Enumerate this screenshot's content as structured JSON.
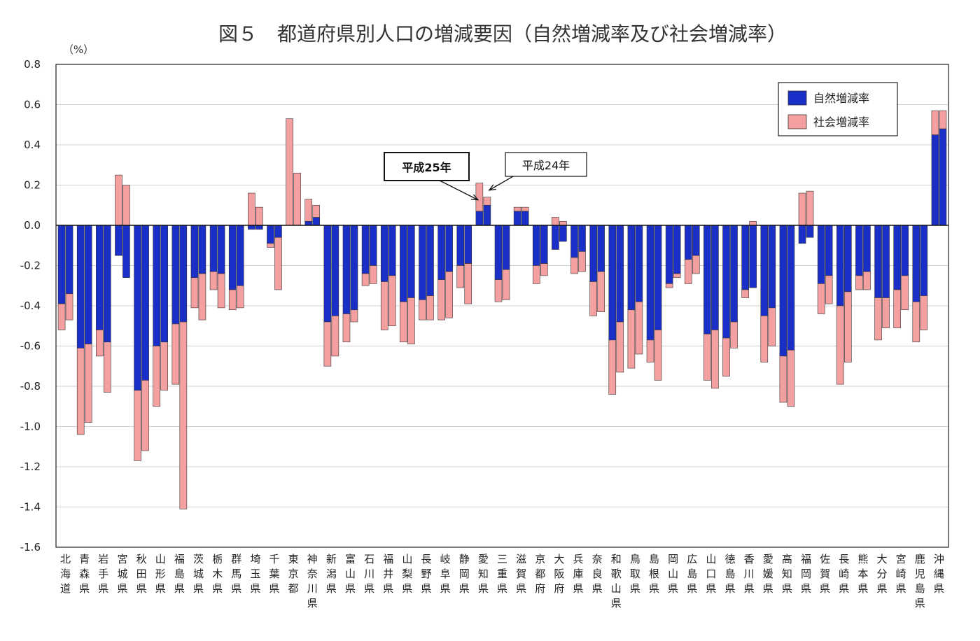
{
  "chart_data": {
    "type": "bar",
    "title": "図５　都道府県別人口の増減要因（自然増減率及び社会増減率）",
    "unit_label": "（%）",
    "ylim": [
      -1.6,
      0.8
    ],
    "yticks": [
      "0.8",
      "0.6",
      "0.4",
      "0.2",
      "0.0",
      "-0.2",
      "-0.4",
      "-0.6",
      "-0.8",
      "-1.0",
      "-1.2",
      "-1.4",
      "-1.6"
    ],
    "grid": true,
    "legend_position": "top-right",
    "colors": {
      "natural": "#1a2fc8",
      "social": "#f4a0a0",
      "stroke": "#333333"
    },
    "categories": [
      "北海道",
      "青森県",
      "岩手県",
      "宮城県",
      "秋田県",
      "山形県",
      "福島県",
      "茨城県",
      "栃木県",
      "群馬県",
      "埼玉県",
      "千葉県",
      "東京都",
      "神奈川県",
      "新潟県",
      "富山県",
      "石川県",
      "福井県",
      "山梨県",
      "長野県",
      "岐阜県",
      "静岡県",
      "愛知県",
      "三重県",
      "滋賀県",
      "京都府",
      "大阪府",
      "兵庫県",
      "奈良県",
      "和歌山県",
      "鳥取県",
      "島根県",
      "岡山県",
      "広島県",
      "山口県",
      "徳島県",
      "香川県",
      "愛媛県",
      "高知県",
      "福岡県",
      "佐賀県",
      "長崎県",
      "熊本県",
      "大分県",
      "宮崎県",
      "鹿児島県",
      "沖縄県"
    ],
    "series": [
      {
        "name": "自然増減率",
        "h25": [
          -0.39,
          -0.61,
          -0.52,
          -0.15,
          -0.82,
          -0.6,
          -0.49,
          -0.26,
          -0.23,
          -0.32,
          -0.02,
          -0.09,
          0.0,
          0.02,
          -0.48,
          -0.44,
          -0.24,
          -0.28,
          -0.38,
          -0.37,
          -0.27,
          -0.2,
          0.07,
          -0.27,
          0.07,
          -0.2,
          -0.12,
          -0.16,
          -0.28,
          -0.57,
          -0.42,
          -0.57,
          -0.29,
          -0.17,
          -0.54,
          -0.56,
          -0.32,
          -0.45,
          -0.65,
          -0.09,
          -0.29,
          -0.4,
          -0.25,
          -0.36,
          -0.32,
          -0.38,
          0.45
        ],
        "h24": [
          -0.34,
          -0.59,
          -0.58,
          -0.26,
          -0.77,
          -0.58,
          -0.48,
          -0.24,
          -0.24,
          -0.3,
          -0.02,
          -0.06,
          0.0,
          0.04,
          -0.45,
          -0.42,
          -0.2,
          -0.25,
          -0.36,
          -0.35,
          -0.23,
          -0.19,
          0.1,
          -0.22,
          0.07,
          -0.19,
          -0.08,
          -0.13,
          -0.23,
          -0.48,
          -0.38,
          -0.52,
          -0.24,
          -0.15,
          -0.52,
          -0.48,
          -0.31,
          -0.41,
          -0.62,
          -0.06,
          -0.25,
          -0.33,
          -0.23,
          -0.36,
          -0.25,
          -0.35,
          0.48
        ]
      },
      {
        "name": "社会増減率",
        "h25": [
          -0.13,
          -0.43,
          -0.13,
          0.25,
          -0.35,
          -0.3,
          -0.3,
          -0.15,
          -0.09,
          -0.1,
          0.16,
          -0.02,
          0.53,
          0.11,
          -0.22,
          -0.14,
          -0.06,
          -0.24,
          -0.2,
          -0.1,
          -0.2,
          -0.11,
          0.14,
          -0.11,
          0.02,
          -0.09,
          0.04,
          -0.08,
          -0.17,
          -0.27,
          -0.29,
          -0.11,
          -0.02,
          -0.12,
          -0.23,
          -0.19,
          -0.04,
          -0.23,
          -0.23,
          0.16,
          -0.15,
          -0.39,
          -0.07,
          -0.21,
          -0.19,
          -0.2,
          0.12
        ],
        "h24": [
          -0.13,
          -0.39,
          -0.25,
          0.2,
          -0.35,
          -0.24,
          -0.93,
          -0.23,
          -0.17,
          -0.11,
          0.09,
          -0.26,
          0.26,
          0.06,
          -0.2,
          -0.06,
          -0.09,
          -0.25,
          -0.23,
          -0.12,
          -0.23,
          -0.2,
          0.04,
          -0.15,
          0.02,
          -0.06,
          0.02,
          -0.1,
          -0.2,
          -0.25,
          -0.26,
          -0.25,
          -0.02,
          -0.09,
          -0.29,
          -0.13,
          0.02,
          -0.19,
          -0.28,
          0.17,
          -0.14,
          -0.35,
          -0.09,
          -0.15,
          -0.17,
          -0.17,
          0.09
        ]
      }
    ],
    "annotations": [
      {
        "label": "平成25年",
        "target_index": 22,
        "target_year": "h25"
      },
      {
        "label": "平成24年",
        "target_index": 22,
        "target_year": "h24"
      }
    ]
  }
}
